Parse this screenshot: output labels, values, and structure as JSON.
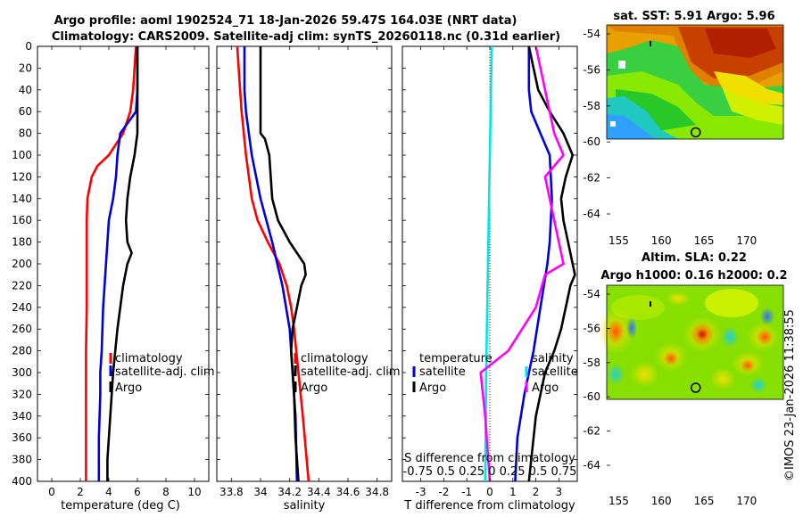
{
  "header": {
    "title_line1": "Argo profile: aoml 1902524_71 18-Jan-2026 59.47S 164.03E (NRT data)",
    "title_line2": "Climatology: CARS2009. Satellite-adj clim: synTS_20260118.nc (0.31d earlier)"
  },
  "depth_ticks": [
    "0",
    "20",
    "40",
    "60",
    "80",
    "100",
    "120",
    "140",
    "160",
    "180",
    "200",
    "220",
    "240",
    "260",
    "280",
    "300",
    "320",
    "340",
    "360",
    "380",
    "400"
  ],
  "colors": {
    "climatology": "#ff0000",
    "satellite": "#0000dd",
    "argo": "#000000",
    "cyan": "#00e5e5",
    "magenta": "#ff00ff"
  },
  "chart_data": [
    {
      "type": "line",
      "name": "temperature-panel",
      "xlabel": "temperature (deg C)",
      "xlim": [
        -1,
        11
      ],
      "ylim": [
        0,
        400
      ],
      "x_ticks": [
        0,
        2,
        4,
        6,
        8,
        10
      ],
      "x_tick_labels": [
        "0",
        "2",
        "4",
        "6",
        "8",
        "10"
      ],
      "legend": [
        "climatology",
        "satellite-adj. clim",
        "Argo"
      ],
      "series": [
        {
          "name": "climatology",
          "color": "#ff0000",
          "depth": [
            0,
            20,
            40,
            60,
            80,
            100,
            110,
            120,
            140,
            160,
            200,
            240,
            280,
            320,
            360,
            400
          ],
          "values": [
            5.9,
            5.8,
            5.7,
            5.5,
            5.0,
            4.0,
            3.2,
            2.8,
            2.5,
            2.45,
            2.45,
            2.45,
            2.4,
            2.4,
            2.4,
            2.4
          ]
        },
        {
          "name": "satellite-adj. clim",
          "color": "#0000dd",
          "depth": [
            0,
            40,
            60,
            80,
            100,
            120,
            140,
            160,
            180,
            200,
            240,
            280,
            300,
            320,
            360,
            400
          ],
          "values": [
            6.0,
            6.0,
            5.9,
            4.8,
            4.6,
            4.5,
            4.3,
            4.0,
            3.9,
            3.8,
            3.6,
            3.5,
            3.4,
            3.4,
            3.3,
            3.3
          ]
        },
        {
          "name": "Argo",
          "color": "#000000",
          "depth": [
            0,
            60,
            80,
            100,
            120,
            140,
            160,
            180,
            190,
            200,
            220,
            260,
            300,
            340,
            380,
            400
          ],
          "values": [
            6.0,
            6.0,
            6.0,
            5.8,
            5.5,
            5.3,
            5.2,
            5.3,
            5.6,
            5.3,
            5.0,
            4.6,
            4.3,
            4.1,
            3.9,
            3.9
          ]
        }
      ]
    },
    {
      "type": "line",
      "name": "salinity-panel",
      "xlabel": "salinity",
      "xlim": [
        33.7,
        34.9
      ],
      "ylim": [
        0,
        400
      ],
      "x_ticks": [
        33.8,
        34.0,
        34.2,
        34.4,
        34.6,
        34.8
      ],
      "x_tick_labels": [
        "33.8",
        "34",
        "34.2",
        "34.4",
        "34.6",
        "34.8"
      ],
      "legend": [
        "climatology",
        "satellite-adj. clim",
        "Argo"
      ],
      "series": [
        {
          "name": "climatology",
          "color": "#ff0000",
          "depth": [
            0,
            20,
            40,
            60,
            100,
            140,
            160,
            180,
            200,
            220,
            240,
            260,
            300,
            340,
            400
          ],
          "values": [
            33.84,
            33.85,
            33.86,
            33.87,
            33.9,
            33.94,
            33.98,
            34.05,
            34.13,
            34.18,
            34.21,
            34.23,
            34.26,
            34.29,
            34.33
          ]
        },
        {
          "name": "satellite-adj. clim",
          "color": "#0000dd",
          "depth": [
            0,
            40,
            60,
            80,
            100,
            140,
            180,
            220,
            260,
            300,
            340,
            400
          ],
          "values": [
            33.89,
            33.89,
            33.9,
            33.92,
            33.94,
            34.0,
            34.08,
            34.15,
            34.2,
            34.22,
            34.24,
            34.25
          ]
        },
        {
          "name": "Argo",
          "color": "#000000",
          "depth": [
            0,
            40,
            80,
            85,
            100,
            140,
            160,
            180,
            200,
            210,
            220,
            240,
            260,
            280,
            320,
            360,
            400
          ],
          "values": [
            34.0,
            34.0,
            34.0,
            34.03,
            34.06,
            34.08,
            34.12,
            34.2,
            34.3,
            34.31,
            34.28,
            34.25,
            34.22,
            34.21,
            34.23,
            34.24,
            34.26
          ]
        }
      ]
    },
    {
      "type": "line",
      "name": "difference-panel",
      "xlabel": "T difference from climatology",
      "top_label": "S difference from climatology",
      "xlim": [
        -3.8,
        3.8
      ],
      "ylim": [
        0,
        400
      ],
      "x_ticks": [
        -3,
        -2,
        -1,
        0,
        1,
        2,
        3
      ],
      "x_tick_labels": [
        "-3",
        "-2",
        "-1",
        "0",
        "1",
        "2",
        "3"
      ],
      "top_tick_labels": "-0.75 0.5 0.25  0  0.25 0.5 0.75",
      "legend_left_title": "temperature",
      "legend_right_title": "salinity",
      "legend_left": [
        "satellite",
        "Argo"
      ],
      "legend_right": [
        "satellite",
        "Argo"
      ],
      "series": [
        {
          "name": "T satellite",
          "color": "#0000dd",
          "depth": [
            0,
            40,
            60,
            80,
            100,
            140,
            180,
            200,
            240,
            280,
            320,
            360,
            400
          ],
          "values": [
            1.7,
            1.7,
            1.8,
            2.2,
            2.6,
            2.7,
            2.6,
            2.5,
            2.2,
            1.9,
            1.5,
            1.2,
            1.1
          ]
        },
        {
          "name": "T Argo",
          "color": "#000000",
          "depth": [
            0,
            40,
            60,
            80,
            100,
            120,
            140,
            160,
            180,
            200,
            210,
            220,
            260,
            280,
            300,
            340,
            400
          ],
          "values": [
            1.7,
            2.1,
            2.6,
            3.2,
            3.6,
            3.3,
            3.1,
            3.2,
            3.4,
            3.6,
            3.7,
            3.5,
            3.1,
            2.8,
            2.4,
            2.0,
            1.7
          ]
        },
        {
          "name": "S satellite",
          "color": "#00e5e5",
          "depth": [
            0,
            100,
            200,
            300,
            400
          ],
          "values": [
            0.02,
            0.0,
            -0.02,
            -0.04,
            -0.05
          ]
        },
        {
          "name": "S Argo",
          "color": "#ff00ff",
          "depth": [
            0,
            40,
            80,
            100,
            120,
            160,
            200,
            210,
            240,
            280,
            300,
            340,
            400
          ],
          "values": [
            0.5,
            0.6,
            0.7,
            0.8,
            0.6,
            0.7,
            0.8,
            0.6,
            0.5,
            0.2,
            -0.1,
            -0.05,
            0.0
          ]
        }
      ]
    }
  ],
  "maps": [
    {
      "name": "sst-map",
      "title": "sat. SST: 5.91 Argo: 5.96",
      "lat_labels": [
        "-54",
        "-56",
        "-58",
        "-60",
        "-62",
        "-64"
      ],
      "lon_labels": [
        "155",
        "160",
        "165",
        "170"
      ],
      "marker_lon": 164.03,
      "marker_lat": -59.47
    },
    {
      "name": "sla-map",
      "title_line1": "Altim. SLA: 0.22",
      "title_line2": "Argo h1000: 0.16 h2000: 0.2",
      "lat_labels": [
        "-54",
        "-56",
        "-58",
        "-60",
        "-62",
        "-64"
      ],
      "lon_labels": [
        "155",
        "160",
        "165",
        "170"
      ],
      "marker_lon": 164.03,
      "marker_lat": -59.47
    }
  ],
  "stamp": "©IMOS 23-Jan-2026 11:38:55"
}
